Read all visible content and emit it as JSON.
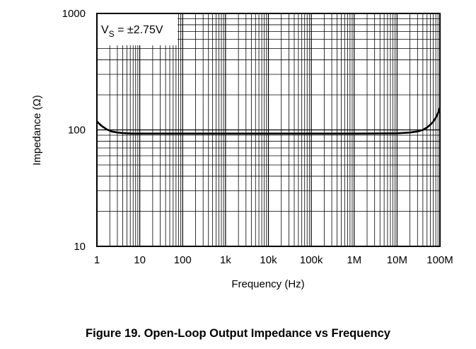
{
  "caption": "Figure 19. Open-Loop Output Impedance vs Frequency",
  "chart_data": {
    "type": "line",
    "xscale": "log",
    "yscale": "log",
    "xlabel": "Frequency (Hz)",
    "ylabel": "Impedance (Ω)",
    "xlim": [
      1,
      100000000
    ],
    "ylim": [
      10,
      1000
    ],
    "x_ticks": [
      {
        "value": 1,
        "label": "1"
      },
      {
        "value": 10,
        "label": "10"
      },
      {
        "value": 100,
        "label": "100"
      },
      {
        "value": 1000,
        "label": "1k"
      },
      {
        "value": 10000,
        "label": "10k"
      },
      {
        "value": 100000,
        "label": "100k"
      },
      {
        "value": 1000000,
        "label": "1M"
      },
      {
        "value": 10000000,
        "label": "10M"
      },
      {
        "value": 100000000,
        "label": "100M"
      }
    ],
    "y_ticks": [
      {
        "value": 10,
        "label": "10"
      },
      {
        "value": 100,
        "label": "100"
      },
      {
        "value": 1000,
        "label": "1000"
      }
    ],
    "grid": true,
    "annotation": {
      "prefix": "V",
      "subscript": "S",
      "suffix": " = ±2.75V"
    },
    "series": [
      {
        "x": [
          1,
          1.3,
          1.7,
          2.2,
          3,
          4,
          5,
          7,
          10,
          100,
          1000,
          10000,
          100000,
          1000000,
          10000000,
          20000000,
          30000000,
          40000000,
          50000000,
          60000000,
          70000000,
          80000000,
          90000000,
          100000000
        ],
        "y": [
          118,
          108,
          101,
          97,
          95,
          94,
          93.5,
          93,
          93,
          93,
          93,
          93,
          93,
          93,
          93.5,
          95,
          97,
          100,
          105,
          111,
          118,
          127,
          139,
          155
        ]
      }
    ]
  }
}
